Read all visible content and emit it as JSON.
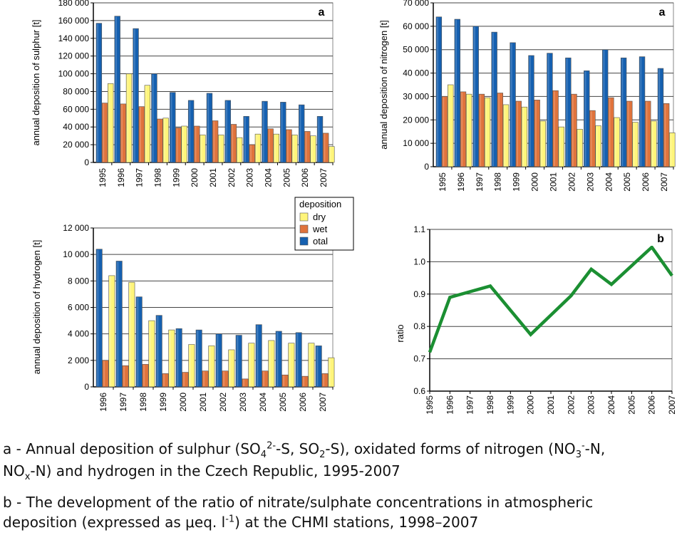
{
  "chart_data": [
    {
      "id": "sulphur",
      "type": "bar",
      "tag": "a",
      "ylabel": "annual deposition of sulphur [t]",
      "ylim": [
        0,
        180000
      ],
      "yticks": [
        0,
        20000,
        40000,
        60000,
        80000,
        100000,
        120000,
        140000,
        160000,
        180000
      ],
      "ytick_labels": [
        "0",
        "20 000",
        "40 000",
        "60 000",
        "80 000",
        "100 000",
        "120 000",
        "140 000",
        "160 000",
        "180 000"
      ],
      "categories": [
        "1995",
        "1996",
        "1997",
        "1998",
        "1999",
        "2000",
        "2001",
        "2002",
        "2003",
        "2004",
        "2005",
        "2006",
        "2007"
      ],
      "series": [
        {
          "key": "total",
          "color": "#1560b0",
          "values": [
            157000,
            165000,
            151000,
            100000,
            79000,
            70000,
            78000,
            70000,
            52000,
            69000,
            68000,
            65000,
            52000
          ]
        },
        {
          "key": "wet",
          "color": "#e0733c",
          "values": [
            67000,
            66000,
            63000,
            49000,
            39000,
            41000,
            47000,
            43000,
            20000,
            38000,
            37000,
            35000,
            33000
          ]
        },
        {
          "key": "dry",
          "color": "#fff57a",
          "values": [
            89000,
            100000,
            87000,
            50000,
            41000,
            31000,
            31000,
            28000,
            32000,
            32000,
            31000,
            30000,
            18000
          ]
        }
      ],
      "grid": true
    },
    {
      "id": "nitrogen",
      "type": "bar",
      "tag": "a",
      "ylabel": "annual deposition of nitrogen [t]",
      "ylim": [
        0,
        70000
      ],
      "yticks": [
        0,
        10000,
        20000,
        30000,
        40000,
        50000,
        60000,
        70000
      ],
      "ytick_labels": [
        "0",
        "10 000",
        "20 000",
        "30 000",
        "40 000",
        "50 000",
        "60 000",
        "70 000"
      ],
      "categories": [
        "1995",
        "1996",
        "1997",
        "1998",
        "1999",
        "2000",
        "2001",
        "2002",
        "2003",
        "2004",
        "2005",
        "2006",
        "2007"
      ],
      "series": [
        {
          "key": "total",
          "color": "#1560b0",
          "values": [
            64000,
            63000,
            60000,
            57500,
            53000,
            47500,
            48500,
            46500,
            41000,
            50000,
            46500,
            47000,
            42000
          ]
        },
        {
          "key": "wet",
          "color": "#e0733c",
          "values": [
            30000,
            32000,
            31000,
            31500,
            28000,
            28500,
            32500,
            31000,
            24000,
            29500,
            28000,
            28000,
            27000
          ]
        },
        {
          "key": "dry",
          "color": "#fff57a",
          "values": [
            35000,
            31000,
            29500,
            26500,
            25500,
            19500,
            17000,
            16000,
            17500,
            21000,
            19000,
            19500,
            14500
          ]
        }
      ],
      "grid": true
    },
    {
      "id": "hydrogen",
      "type": "bar",
      "tag": "a",
      "ylabel": "annual deposition of hydrogen [t]",
      "ylim": [
        0,
        12000
      ],
      "yticks": [
        0,
        2000,
        4000,
        6000,
        8000,
        10000,
        12000
      ],
      "ytick_labels": [
        "0",
        "2 000",
        "4 000",
        "6 000",
        "8 000",
        "10 000",
        "12 000"
      ],
      "categories": [
        "1996",
        "1997",
        "1998",
        "1999",
        "2000",
        "2001",
        "2002",
        "2003",
        "2004",
        "2005",
        "2006",
        "2007"
      ],
      "series": [
        {
          "key": "total",
          "color": "#1560b0",
          "values": [
            10400,
            9500,
            6800,
            5400,
            4400,
            4300,
            4000,
            3900,
            4700,
            4200,
            4100,
            3100
          ]
        },
        {
          "key": "wet",
          "color": "#e0733c",
          "values": [
            2000,
            1600,
            1700,
            1000,
            1100,
            1200,
            1200,
            600,
            1200,
            900,
            800,
            1000
          ]
        },
        {
          "key": "dry",
          "color": "#fff57a",
          "values": [
            8400,
            7900,
            5000,
            4300,
            3200,
            3100,
            2800,
            3300,
            3500,
            3300,
            3300,
            2200
          ]
        }
      ],
      "grid": true,
      "legend": {
        "title": "deposition",
        "placement": "top-right",
        "entries": [
          {
            "label": "dry",
            "color": "#fff57a"
          },
          {
            "label": "wet",
            "color": "#e0733c"
          },
          {
            "label": "otal",
            "color": "#1560b0"
          }
        ]
      }
    },
    {
      "id": "ratio",
      "type": "line",
      "tag": "b",
      "ylabel": "ratio",
      "ylim": [
        0.6,
        1.1
      ],
      "yticks": [
        0.6,
        0.7,
        0.8,
        0.9,
        1.0,
        1.1
      ],
      "ytick_labels": [
        "0.6",
        "0.7",
        "0.8",
        "0.9",
        "1.0",
        "1.1"
      ],
      "categories": [
        "1995",
        "1996",
        "1997",
        "1998",
        "1999",
        "2000",
        "2001",
        "2002",
        "2003",
        "2004",
        "2005",
        "2006",
        "2007"
      ],
      "x_points": [
        1995,
        1996,
        1997,
        1998,
        1999,
        2000,
        2001,
        2002,
        2003,
        2004,
        2005,
        2006,
        2007
      ],
      "series": [
        {
          "color": "#1b8f32",
          "x": [
            1995,
            1996,
            1998,
            2000,
            2002,
            2003,
            2004,
            2006,
            2007
          ],
          "values": [
            0.72,
            0.89,
            0.925,
            0.775,
            0.895,
            0.977,
            0.93,
            1.045,
            0.957
          ]
        }
      ],
      "grid": true
    }
  ],
  "captions": {
    "a_line1_pre": "a - Annual deposition of sulphur (SO",
    "a_sub4": "4",
    "a_sup2m": "2-",
    "a_line1_mid1": "-S, SO",
    "a_sub2": "2",
    "a_line1_mid2": "-S), oxidated forms of nitrogen (NO",
    "a_sub3": "3",
    "a_sup_minus": "-",
    "a_line1_end": "-N,",
    "a_line2_pre": "NO",
    "a_subx": "x",
    "a_line2_end": "-N) and hydrogen in the Czech Republic, 1995-2007",
    "b_line1": "b - The development of the ratio of nitrate/sulphate concentrations in atmospheric",
    "b_line2_pre": "deposition (expressed as μeq. l",
    "b_sup": "-1",
    "b_line2_end": ") at the CHMI stations, 1998–2007"
  }
}
